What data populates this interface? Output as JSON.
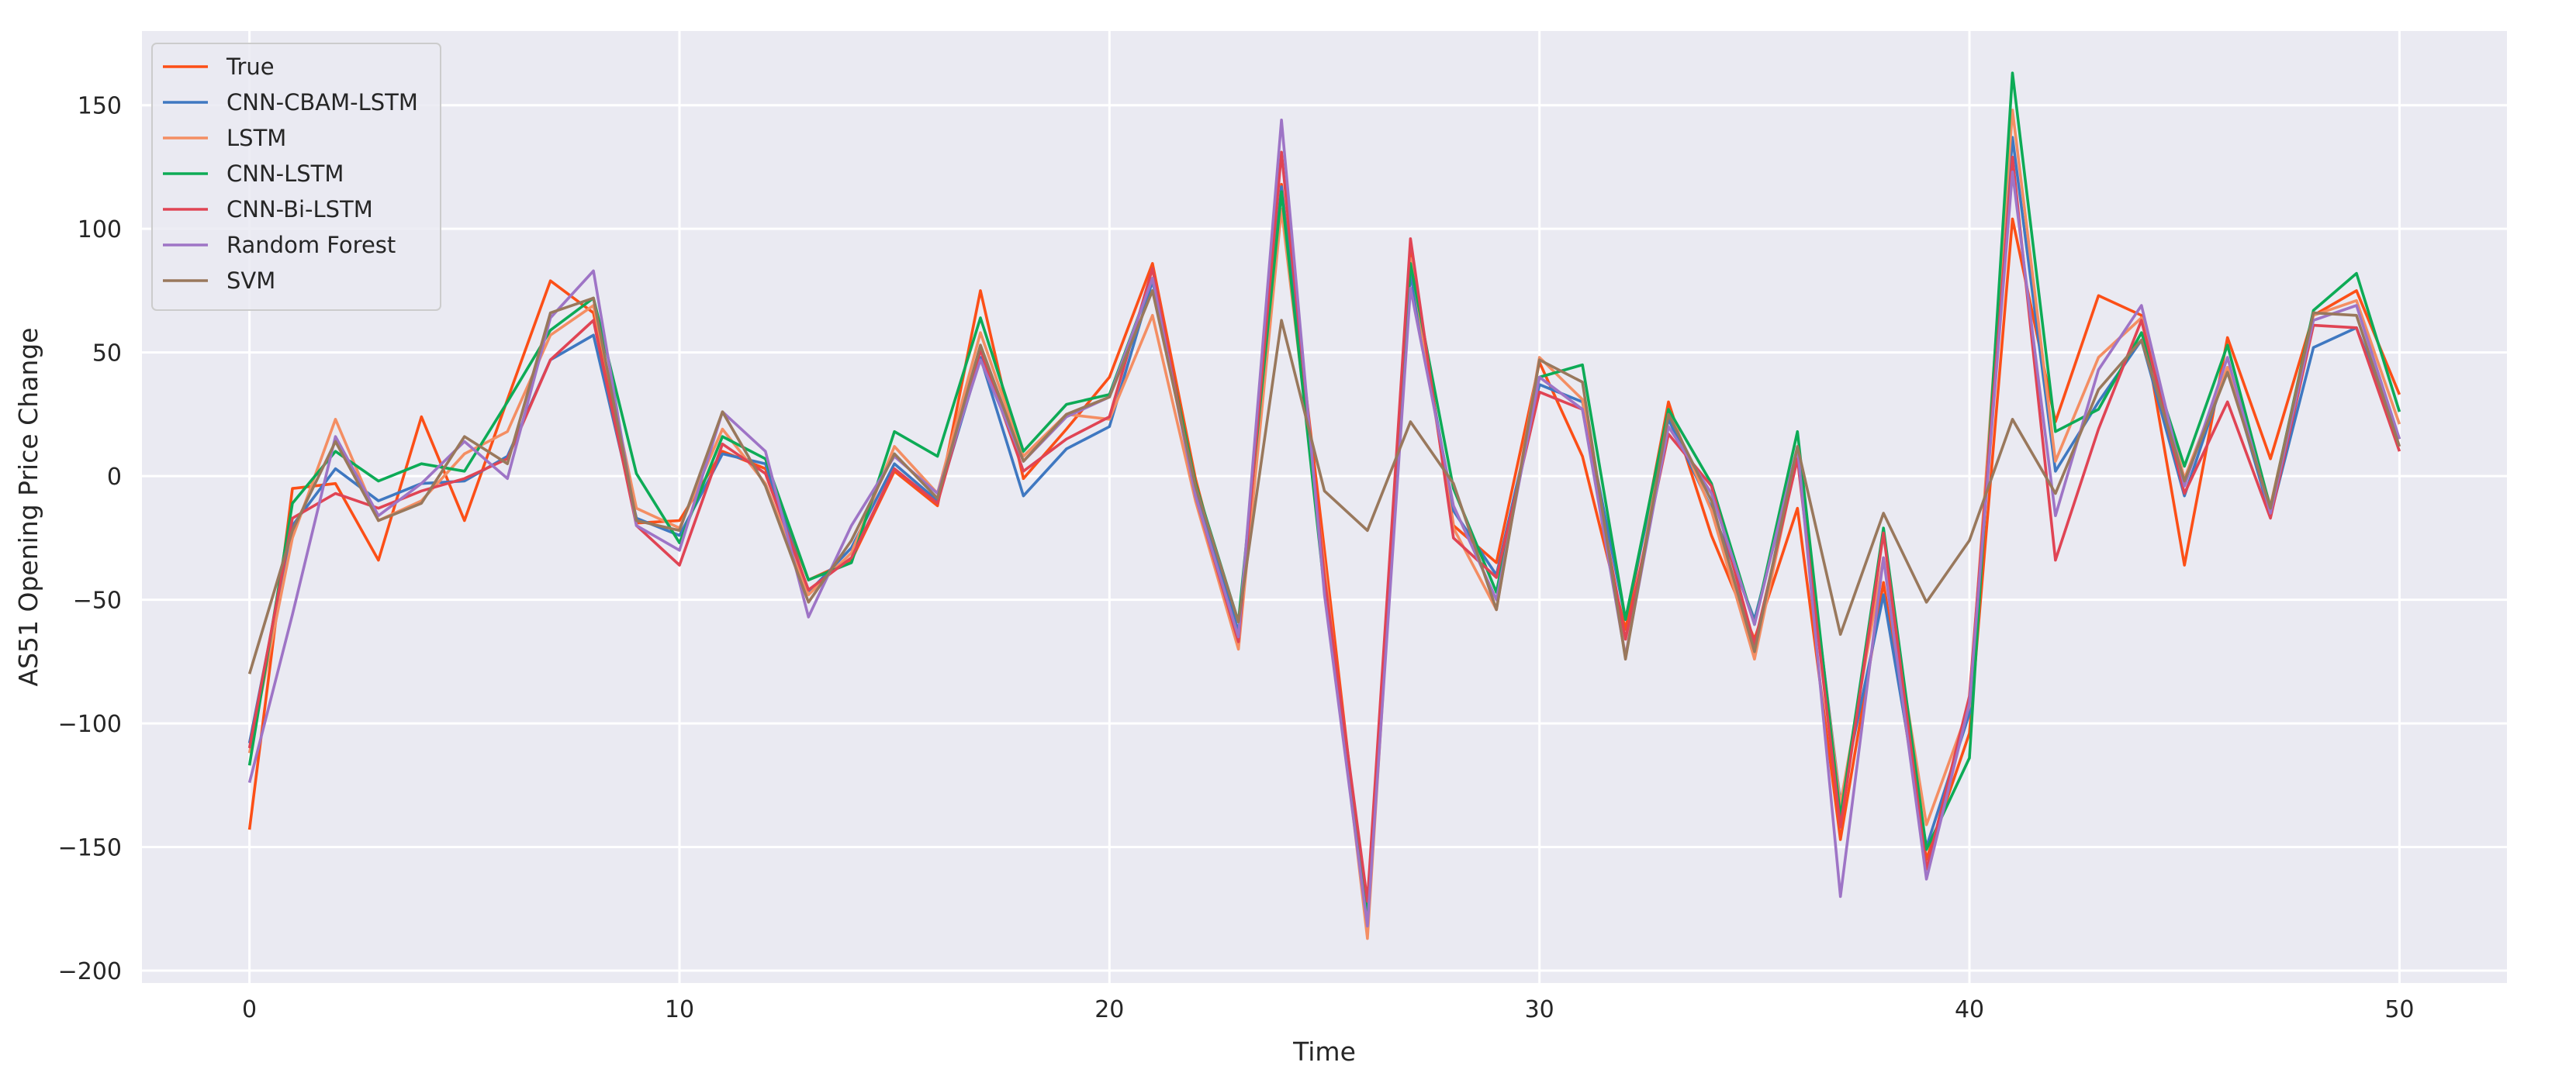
{
  "chart_data": {
    "type": "line",
    "title": "",
    "xlabel": "Time",
    "ylabel": "AS51 Opening Price Change",
    "xlim": [
      -2.5,
      52.5
    ],
    "ylim": [
      -205,
      180
    ],
    "xticks": [
      0,
      10,
      20,
      30,
      40,
      50
    ],
    "yticks": [
      -200,
      -150,
      -100,
      -50,
      0,
      50,
      100,
      150
    ],
    "xtick_labels": [
      "0",
      "10",
      "20",
      "30",
      "40",
      "50"
    ],
    "ytick_labels": [
      "−200",
      "−150",
      "−100",
      "−50",
      "0",
      "50",
      "100",
      "150"
    ],
    "grid": true,
    "legend_position": "top-left",
    "background": "#eaeaf2",
    "x": [
      0,
      1,
      2,
      3,
      4,
      5,
      6,
      7,
      8,
      9,
      10,
      11,
      12,
      13,
      14,
      15,
      16,
      17,
      18,
      19,
      20,
      21,
      22,
      23,
      24,
      25,
      26,
      27,
      28,
      29,
      30,
      31,
      32,
      33,
      34,
      35,
      36,
      37,
      38,
      39,
      40,
      41,
      42,
      43,
      44,
      45,
      46,
      47,
      48,
      49,
      50
    ],
    "series": [
      {
        "name": "True",
        "color": "#fc4f17",
        "values": [
          -143,
          -5,
          -3,
          -34,
          24,
          -18,
          31,
          79,
          66,
          -19,
          -18,
          10,
          3,
          -42,
          -34,
          2,
          -12,
          75,
          -1,
          19,
          40,
          86,
          -1,
          -67,
          118,
          -30,
          -181,
          90,
          -20,
          -35,
          46,
          8,
          -62,
          30,
          -24,
          -66,
          -13,
          -147,
          -43,
          -155,
          -104,
          104,
          22,
          73,
          65,
          -36,
          56,
          7,
          65,
          75,
          33
        ]
      },
      {
        "name": "CNN-CBAM-LSTM",
        "color": "#3f78c1",
        "values": [
          -108,
          -20,
          3,
          -10,
          -3,
          -2,
          8,
          47,
          57,
          -17,
          -24,
          9,
          5,
          -47,
          -29,
          5,
          -10,
          48,
          -8,
          11,
          20,
          79,
          -5,
          -63,
          117,
          -42,
          -173,
          82,
          -14,
          -40,
          37,
          30,
          -58,
          23,
          -13,
          -58,
          9,
          -132,
          -48,
          -150,
          -96,
          137,
          2,
          30,
          55,
          -8,
          44,
          -16,
          52,
          60,
          15
        ]
      },
      {
        "name": "LSTM",
        "color": "#f48e63",
        "values": [
          -112,
          -25,
          23,
          -18,
          -10,
          9,
          18,
          57,
          69,
          -13,
          -21,
          19,
          -3,
          -48,
          -31,
          12,
          -7,
          58,
          8,
          25,
          23,
          65,
          -10,
          -70,
          108,
          -37,
          -187,
          88,
          -21,
          -54,
          48,
          31,
          -73,
          27,
          -14,
          -74,
          9,
          -133,
          -33,
          -141,
          -93,
          148,
          6,
          48,
          64,
          -1,
          44,
          -12,
          65,
          71,
          21
        ]
      },
      {
        "name": "CNN-LSTM",
        "color": "#0dab56",
        "values": [
          -117,
          -11,
          10,
          -2,
          5,
          2,
          30,
          59,
          72,
          1,
          -27,
          16,
          7,
          -42,
          -35,
          18,
          8,
          64,
          10,
          29,
          33,
          80,
          -3,
          -59,
          115,
          -46,
          -177,
          86,
          -5,
          -47,
          40,
          45,
          -58,
          27,
          -3,
          -60,
          18,
          -138,
          -21,
          -151,
          -114,
          163,
          18,
          27,
          58,
          4,
          53,
          -13,
          67,
          82,
          26
        ]
      },
      {
        "name": "CNN-Bi-LSTM",
        "color": "#e04454",
        "values": [
          -110,
          -17,
          -7,
          -13,
          -6,
          -1,
          7,
          47,
          63,
          -20,
          -36,
          13,
          1,
          -46,
          -33,
          3,
          -11,
          51,
          2,
          15,
          24,
          84,
          -8,
          -67,
          131,
          -41,
          -172,
          96,
          -25,
          -41,
          34,
          27,
          -66,
          17,
          -4,
          -68,
          7,
          -142,
          -23,
          -159,
          -89,
          129,
          -34,
          19,
          63,
          -7,
          30,
          -17,
          61,
          60,
          10
        ]
      },
      {
        "name": "Random Forest",
        "color": "#9e74c6",
        "values": [
          -124,
          -56,
          16,
          -16,
          -3,
          14,
          -1,
          64,
          83,
          -20,
          -30,
          26,
          10,
          -57,
          -20,
          8,
          -7,
          47,
          6,
          24,
          32,
          80,
          -8,
          -65,
          144,
          -48,
          -182,
          76,
          -12,
          -50,
          40,
          27,
          -73,
          20,
          -7,
          -60,
          12,
          -170,
          -33,
          -163,
          -92,
          123,
          -16,
          43,
          69,
          -4,
          48,
          -15,
          63,
          69,
          15
        ]
      },
      {
        "name": "SVM",
        "color": "#99785c",
        "values": [
          -80,
          -22,
          14,
          -18,
          -11,
          16,
          5,
          66,
          72,
          -18,
          -22,
          26,
          -4,
          -51,
          -26,
          9,
          -9,
          53,
          6,
          25,
          32,
          75,
          -4,
          -59,
          63,
          -6,
          -22,
          22,
          -3,
          -54,
          47,
          38,
          -74,
          25,
          -10,
          -71,
          12,
          -64,
          -15,
          -51,
          -26,
          23,
          -7,
          35,
          55,
          -2,
          42,
          -13,
          66,
          65,
          12
        ]
      }
    ]
  }
}
